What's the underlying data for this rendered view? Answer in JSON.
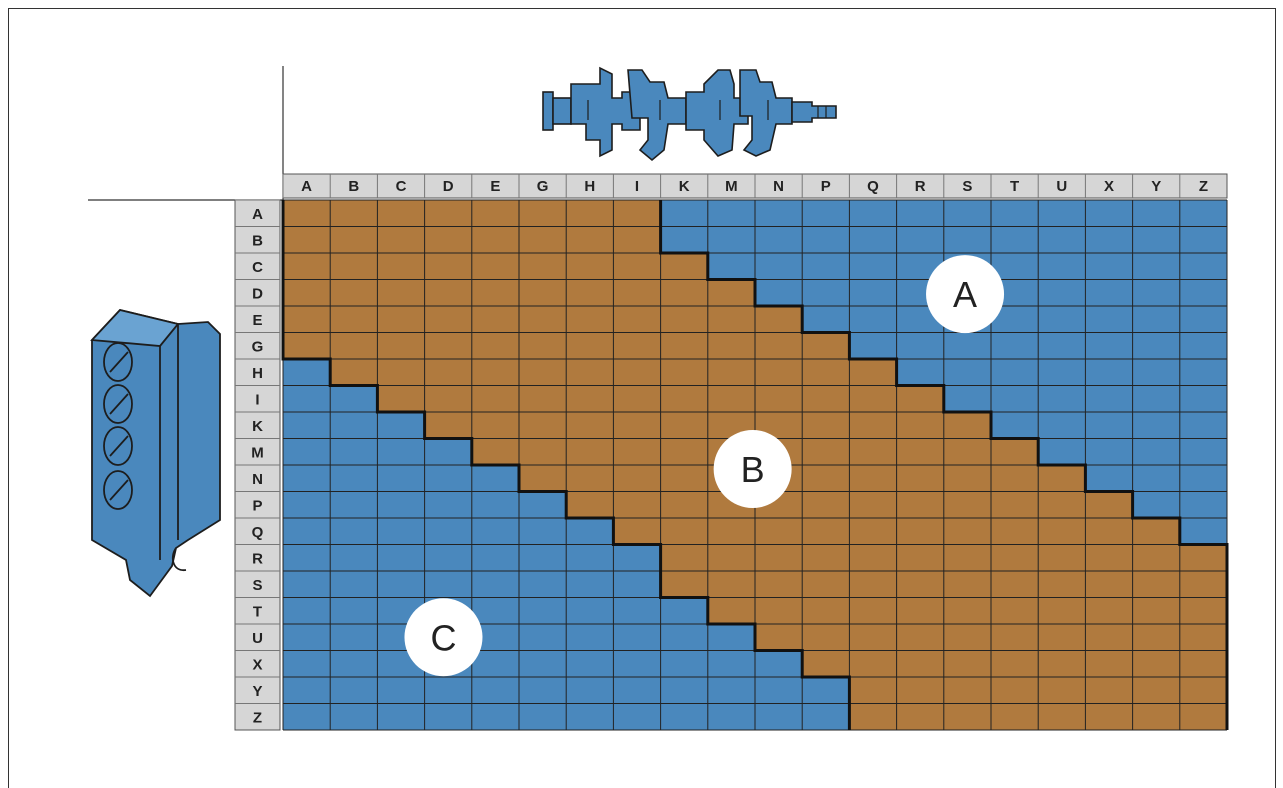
{
  "columns": [
    "A",
    "B",
    "C",
    "D",
    "E",
    "G",
    "H",
    "I",
    "K",
    "M",
    "N",
    "P",
    "Q",
    "R",
    "S",
    "T",
    "U",
    "X",
    "Y",
    "Z"
  ],
  "rows": [
    "A",
    "B",
    "C",
    "D",
    "E",
    "G",
    "H",
    "I",
    "K",
    "M",
    "N",
    "P",
    "Q",
    "R",
    "S",
    "T",
    "U",
    "X",
    "Y",
    "Z"
  ],
  "zones": [
    {
      "label": "A",
      "color": "#4a88bd",
      "meaning": "upper"
    },
    {
      "label": "B",
      "color": "#b07a3e",
      "meaning": "middle"
    },
    {
      "label": "C",
      "color": "#4a88bd",
      "meaning": "lower"
    }
  ],
  "colors": {
    "blue": "#4a88bd",
    "orange": "#b07a3e",
    "header_bg": "#d6d6d6",
    "grid_line": "#222222"
  },
  "illustrations": {
    "top": "crankshaft-icon",
    "left": "engine-block-icon"
  }
}
